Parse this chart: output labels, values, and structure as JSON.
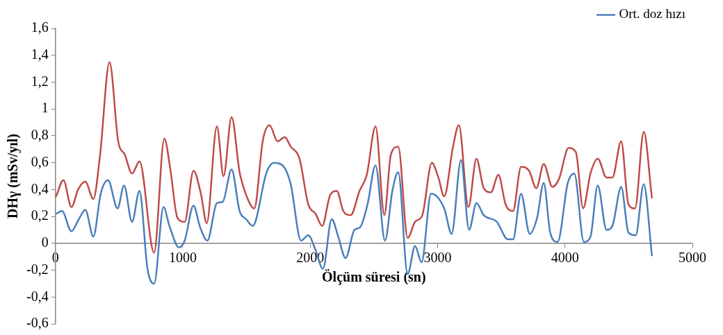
{
  "chart_data": {
    "type": "line",
    "xlabel": "Ölçüm süresi (sn)",
    "ylabel": "DHγ (mSv/yıl)",
    "xlim": [
      0,
      5000
    ],
    "xticks": [
      0,
      1000,
      2000,
      3000,
      4000,
      5000
    ],
    "ylim": [
      -0.6,
      1.6
    ],
    "yticks": [
      {
        "value": -0.6,
        "label": "-0,6"
      },
      {
        "value": -0.4,
        "label": "-0,4"
      },
      {
        "value": -0.2,
        "label": "-0,2"
      },
      0,
      {
        "value": 0.2,
        "label": "0,2"
      },
      {
        "value": 0.4,
        "label": "0,4"
      },
      {
        "value": 0.6,
        "label": "0,6"
      },
      {
        "value": 0.8,
        "label": "0,8"
      },
      1,
      {
        "value": 1.2,
        "label": "1,2"
      },
      {
        "value": 1.4,
        "label": "1,4"
      },
      {
        "value": 1.6,
        "label": "1,6"
      }
    ],
    "grid": false,
    "legend": "top right",
    "marker": "none",
    "line_style": "solid",
    "series": [
      {
        "name": "Ort. doz hızı",
        "color": "#4a7ebb",
        "x": [
          6,
          52,
          126,
          184,
          235,
          298,
          356,
          413,
          488,
          539,
          602,
          660,
          723,
          775,
          849,
          895,
          970,
          1015,
          1084,
          1136,
          1193,
          1268,
          1314,
          1383,
          1446,
          1497,
          1549,
          1658,
          1715,
          1784,
          1847,
          1928,
          1985,
          2042,
          2100,
          2169,
          2220,
          2278,
          2347,
          2392,
          2450,
          2513,
          2587,
          2645,
          2691,
          2765,
          2823,
          2874,
          2949,
          3052,
          3110,
          3184,
          3247,
          3305,
          3362,
          3465,
          3551,
          3592,
          3655,
          3723,
          3781,
          3833,
          3884,
          3942,
          4022,
          4073,
          4148,
          4200,
          4257,
          4326,
          4372,
          4441,
          4498,
          4555,
          4618,
          4682
        ],
        "values": [
          0.22,
          0.24,
          0.09,
          0.18,
          0.25,
          0.05,
          0.37,
          0.47,
          0.26,
          0.43,
          0.16,
          0.39,
          -0.19,
          -0.3,
          0.27,
          0.13,
          -0.03,
          0.02,
          0.28,
          0.12,
          0.02,
          0.3,
          0.31,
          0.55,
          0.24,
          0.18,
          0.13,
          0.53,
          0.6,
          0.58,
          0.44,
          0.02,
          0.06,
          -0.05,
          -0.19,
          0.18,
          0.05,
          -0.11,
          0.1,
          0.12,
          0.29,
          0.58,
          0.02,
          0.39,
          0.53,
          -0.23,
          -0.02,
          -0.14,
          0.37,
          0.26,
          0.07,
          0.62,
          0.1,
          0.3,
          0.21,
          0.16,
          0.03,
          0.03,
          0.37,
          0.07,
          0.19,
          0.45,
          0.08,
          0.01,
          0.45,
          0.52,
          0.01,
          0.05,
          0.43,
          0.1,
          0.13,
          0.42,
          0.08,
          0.06,
          0.44,
          -0.09
        ]
      },
      {
        "color": "#be4b48",
        "x": [
          6,
          63,
          126,
          178,
          235,
          298,
          350,
          425,
          493,
          545,
          602,
          660,
          775,
          855,
          901,
          958,
          1015,
          1084,
          1142,
          1188,
          1268,
          1320,
          1383,
          1446,
          1497,
          1561,
          1629,
          1681,
          1744,
          1801,
          1847,
          1916,
          1985,
          2042,
          2094,
          2157,
          2209,
          2260,
          2318,
          2387,
          2444,
          2513,
          2582,
          2633,
          2691,
          2765,
          2823,
          2880,
          2955,
          3006,
          3052,
          3121,
          3167,
          3242,
          3305,
          3362,
          3419,
          3477,
          3534,
          3592,
          3655,
          3718,
          3775,
          3833,
          3901,
          3953,
          4028,
          4085,
          4142,
          4200,
          4257,
          4326,
          4372,
          4441,
          4498,
          4550,
          4618,
          4682
        ],
        "values": [
          0.35,
          0.47,
          0.27,
          0.4,
          0.46,
          0.33,
          0.65,
          1.35,
          0.76,
          0.66,
          0.52,
          0.61,
          -0.07,
          0.78,
          0.56,
          0.19,
          0.16,
          0.54,
          0.37,
          0.15,
          0.87,
          0.5,
          0.94,
          0.53,
          0.36,
          0.26,
          0.77,
          0.88,
          0.76,
          0.79,
          0.72,
          0.63,
          0.29,
          0.22,
          0.13,
          0.36,
          0.39,
          0.24,
          0.21,
          0.39,
          0.51,
          0.87,
          0.21,
          0.66,
          0.72,
          0.04,
          0.16,
          0.21,
          0.6,
          0.49,
          0.35,
          0.72,
          0.88,
          0.27,
          0.63,
          0.41,
          0.38,
          0.51,
          0.29,
          0.24,
          0.57,
          0.54,
          0.41,
          0.59,
          0.42,
          0.48,
          0.71,
          0.68,
          0.26,
          0.52,
          0.63,
          0.49,
          0.49,
          0.76,
          0.29,
          0.26,
          0.83,
          0.34
        ]
      }
    ]
  }
}
